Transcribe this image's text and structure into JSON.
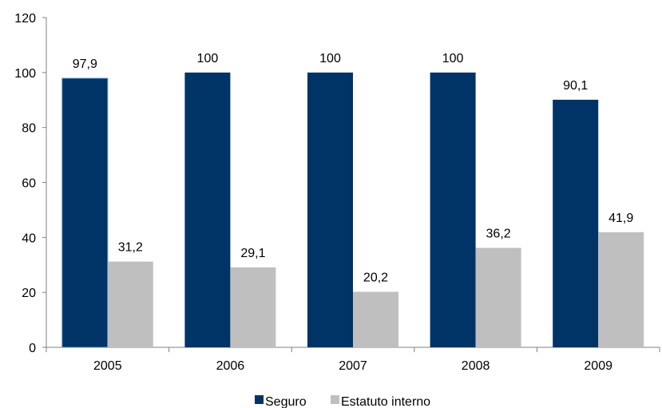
{
  "chart_data": {
    "type": "bar",
    "title": "",
    "xlabel": "",
    "ylabel": "",
    "categories": [
      "2005",
      "2006",
      "2007",
      "2008",
      "2009"
    ],
    "ylim": [
      0,
      120
    ],
    "yticks": [
      "0",
      "20",
      "40",
      "60",
      "80",
      "100",
      "120"
    ],
    "series": [
      {
        "name": "Seguro",
        "color": "#003366",
        "values": [
          97.9,
          100,
          100,
          100,
          90.1
        ],
        "labels": [
          "97,9",
          "100",
          "100",
          "100",
          "90,1"
        ]
      },
      {
        "name": "Estatuto interno",
        "color": "#bfbfbf",
        "values": [
          31.2,
          29.1,
          20.2,
          36.2,
          41.9
        ],
        "labels": [
          "31,2",
          "29,1",
          "20,2",
          "36,2",
          "41,9"
        ]
      }
    ],
    "grid": false,
    "legend_position": "bottom-center"
  }
}
